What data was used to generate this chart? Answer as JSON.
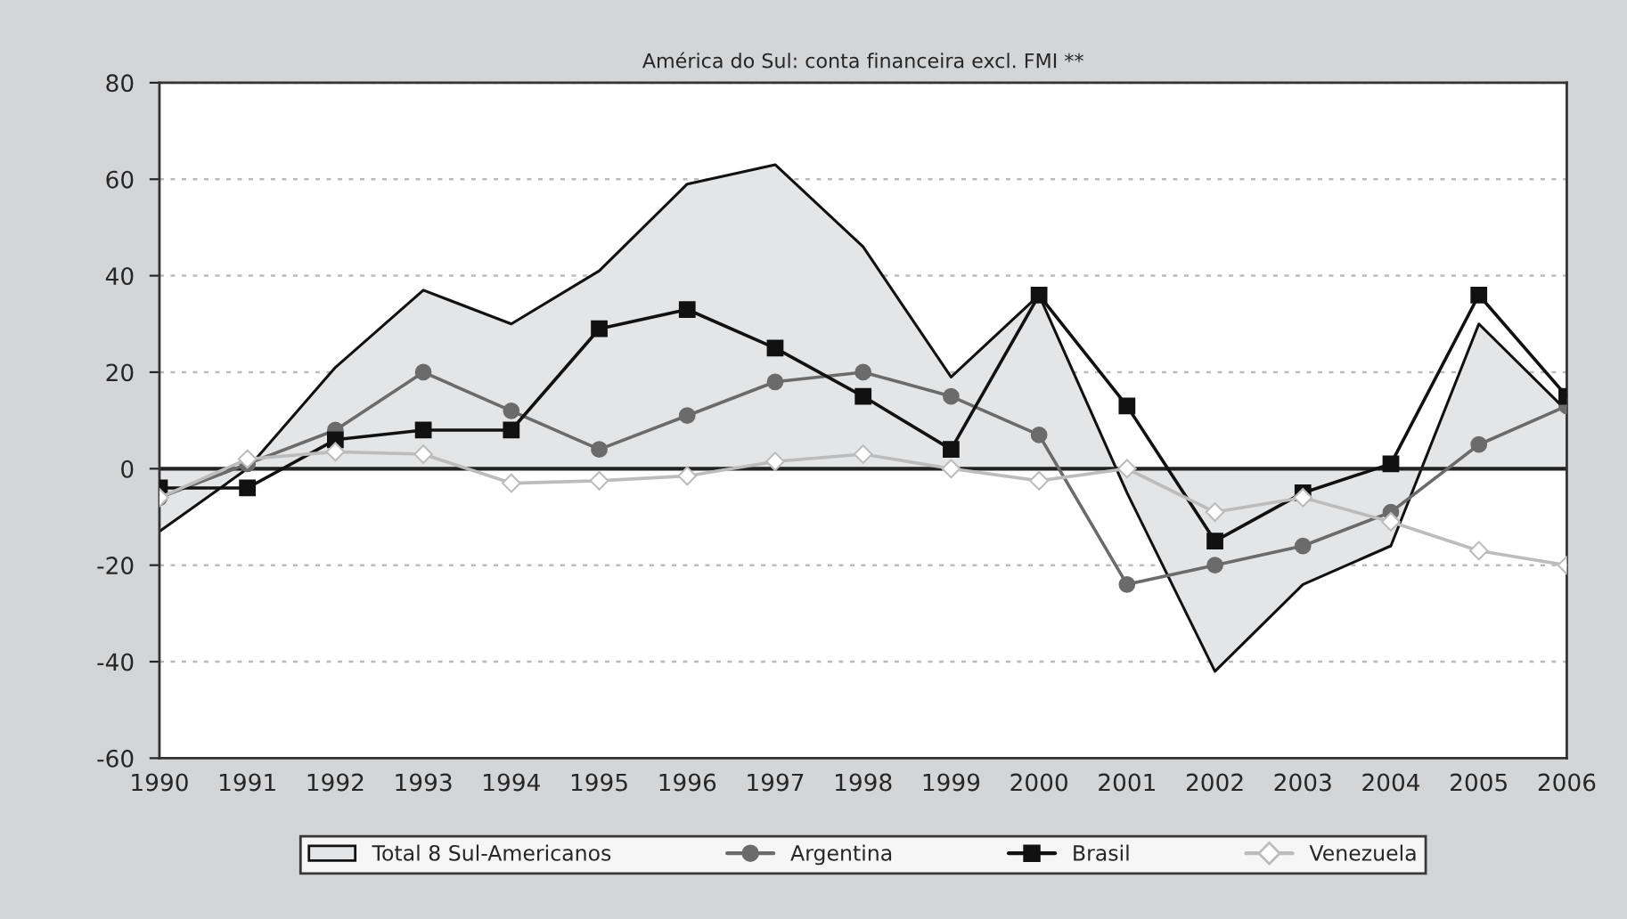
{
  "chart_data": {
    "type": "line",
    "title": "América do Sul: conta financeira excl. FMI **",
    "categories": [
      "1990",
      "1991",
      "1992",
      "1993",
      "1994",
      "1995",
      "1996",
      "1997",
      "1998",
      "1999",
      "2000",
      "2001",
      "2002",
      "2003",
      "2004",
      "2005",
      "2006"
    ],
    "series": [
      {
        "name": "Total 8 Sul-Americanos",
        "type": "area",
        "color": "#e4e5e7",
        "values": [
          -13,
          0,
          21,
          37,
          30,
          41,
          59,
          63,
          46,
          19,
          36,
          -5,
          -42,
          -24,
          -16,
          30,
          12
        ]
      },
      {
        "name": "Argentina",
        "marker": "circle",
        "color": "#6b6b6b",
        "values": [
          -6,
          1,
          8,
          20,
          12,
          4,
          11,
          18,
          20,
          15,
          7,
          -24,
          -20,
          -16,
          -9,
          5,
          13
        ]
      },
      {
        "name": "Brasil",
        "marker": "square",
        "color": "#111111",
        "values": [
          -4,
          -4,
          6,
          8,
          8,
          29,
          33,
          25,
          15,
          4,
          36,
          13,
          -15,
          -5,
          1,
          36,
          15
        ]
      },
      {
        "name": "Venezuela",
        "marker": "diamond",
        "color": "#bcbcbc",
        "values": [
          -6,
          2,
          3.5,
          3,
          -3,
          -2.5,
          -1.5,
          1.5,
          3,
          0,
          -2.5,
          0,
          -9,
          -6,
          -11,
          -17,
          -20
        ]
      }
    ],
    "ylim": [
      -60,
      80
    ],
    "yticks": [
      -60,
      -40,
      -20,
      0,
      20,
      40,
      60,
      80
    ],
    "ref_lines": [
      {
        "axis": "y",
        "value": 0,
        "color": "#222222"
      }
    ],
    "grid": "y",
    "legend": "bottom"
  }
}
